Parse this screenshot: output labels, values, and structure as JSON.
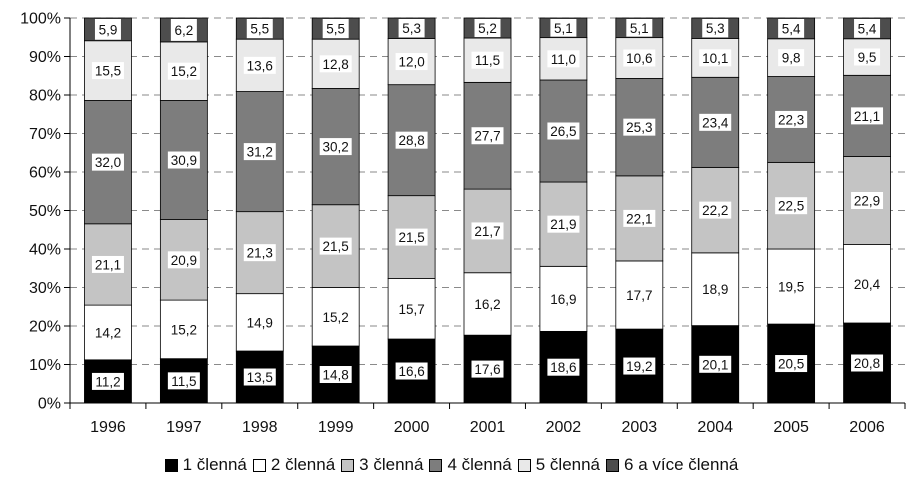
{
  "chart_data": {
    "type": "bar",
    "stacked": true,
    "percent_stacked": true,
    "categories": [
      "1996",
      "1997",
      "1998",
      "1999",
      "2000",
      "2001",
      "2002",
      "2003",
      "2004",
      "2005",
      "2006"
    ],
    "series": [
      {
        "name": "1 členná",
        "color": "#000000",
        "values": [
          11.2,
          11.5,
          13.5,
          14.8,
          16.6,
          17.6,
          18.6,
          19.2,
          20.1,
          20.5,
          20.8
        ]
      },
      {
        "name": "2 členná",
        "color": "#ffffff",
        "values": [
          14.2,
          15.2,
          14.9,
          15.2,
          15.7,
          16.2,
          16.9,
          17.7,
          18.9,
          19.5,
          20.4
        ]
      },
      {
        "name": "3 členná",
        "color": "#c4c4c4",
        "values": [
          21.1,
          20.9,
          21.3,
          21.5,
          21.5,
          21.7,
          21.9,
          22.1,
          22.2,
          22.5,
          22.9
        ]
      },
      {
        "name": "4 členná",
        "color": "#7d7d7d",
        "values": [
          32.0,
          30.9,
          31.2,
          30.2,
          28.8,
          27.7,
          26.5,
          25.3,
          23.4,
          22.3,
          21.1
        ]
      },
      {
        "name": "5 členná",
        "color": "#e9e9e9",
        "values": [
          15.5,
          15.2,
          13.6,
          12.8,
          12.0,
          11.5,
          11.0,
          10.6,
          10.1,
          9.8,
          9.5
        ]
      },
      {
        "name": "6 a více členná",
        "color": "#4d4d4d",
        "values": [
          5.9,
          6.2,
          5.5,
          5.5,
          5.3,
          5.2,
          5.1,
          5.1,
          5.3,
          5.4,
          5.4
        ]
      }
    ],
    "data_labels": [
      [
        "11,2",
        "11,5",
        "13,5",
        "14,8",
        "16,6",
        "17,6",
        "18,6",
        "19,2",
        "20,1",
        "20,5",
        "20,8"
      ],
      [
        "14,2",
        "15,2",
        "14,9",
        "15,2",
        "15,7",
        "16,2",
        "16,9",
        "17,7",
        "18,9",
        "19,5",
        "20,4"
      ],
      [
        "21,1",
        "20,9",
        "21,3",
        "21,5",
        "21,5",
        "21,7",
        "21,9",
        "22,1",
        "22,2",
        "22,5",
        "22,9"
      ],
      [
        "32,0",
        "30,9",
        "31,2",
        "30,2",
        "28,8",
        "27,7",
        "26,5",
        "25,3",
        "23,4",
        "22,3",
        "21,1"
      ],
      [
        "15,5",
        "15,2",
        "13,6",
        "12,8",
        "12,0",
        "11,5",
        "11,0",
        "10,6",
        "10,1",
        "9,8",
        "9,5"
      ],
      [
        "5,9",
        "6,2",
        "5,5",
        "5,5",
        "5,3",
        "5,2",
        "5,1",
        "5,1",
        "5,3",
        "5,4",
        "5,4"
      ]
    ],
    "y_ticks": [
      "0%",
      "10%",
      "20%",
      "30%",
      "40%",
      "50%",
      "60%",
      "70%",
      "80%",
      "90%",
      "100%"
    ],
    "ylim": [
      0,
      100
    ],
    "grid": "horizontal-dashed",
    "legend_position": "bottom",
    "title": "",
    "xlabel": "",
    "ylabel": ""
  }
}
